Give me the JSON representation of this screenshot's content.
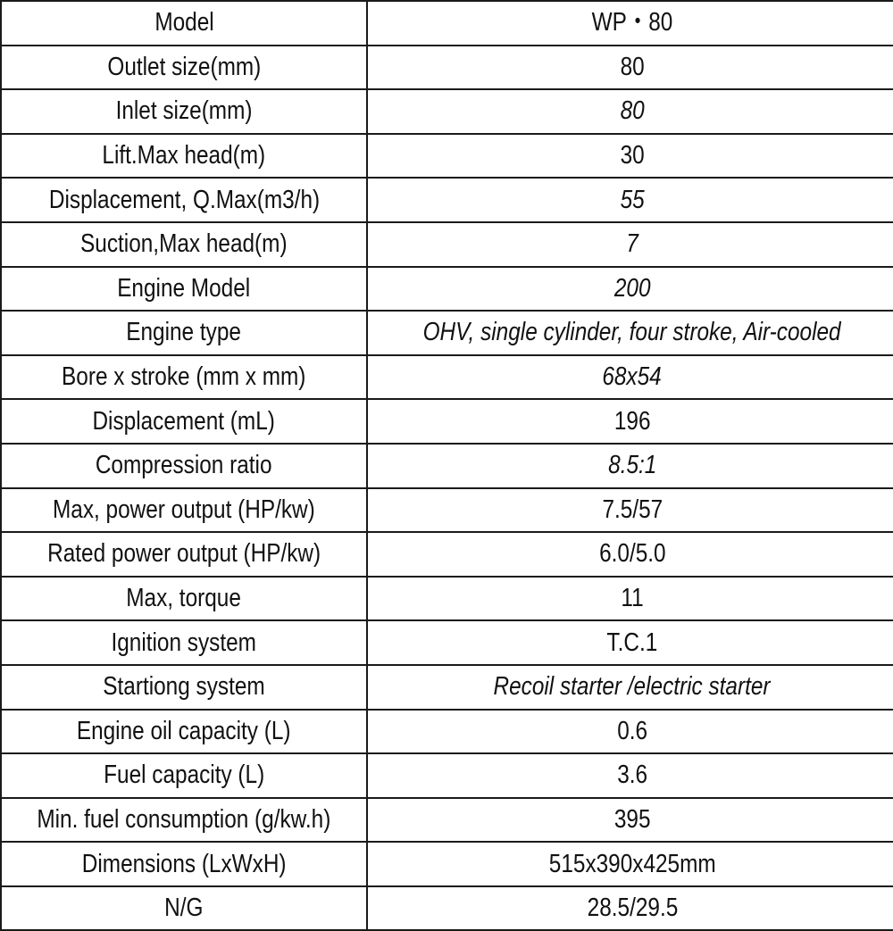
{
  "rows": [
    {
      "label": "Model",
      "value": "WP・80",
      "italic": false
    },
    {
      "label": "Outlet size(mm)",
      "value": "80",
      "italic": false
    },
    {
      "label": "Inlet size(mm)",
      "value": "80",
      "italic": true
    },
    {
      "label": "Lift.Max head(m)",
      "value": "30",
      "italic": false
    },
    {
      "label": "Displacement, Q.Max(m3/h)",
      "value": "55",
      "italic": true
    },
    {
      "label": "Suction,Max head(m)",
      "value": "7",
      "italic": true
    },
    {
      "label": "Engine Model",
      "value": "200",
      "italic": true
    },
    {
      "label": "Engine type",
      "value": "OHV, single cylinder, four stroke, Air-cooled",
      "italic": true
    },
    {
      "label": "Bore x stroke (mm x mm)",
      "value": "68x54",
      "italic": true
    },
    {
      "label": "Displacement (mL)",
      "value": "196",
      "italic": false
    },
    {
      "label": "Compression ratio",
      "value": "8.5:1",
      "italic": true
    },
    {
      "label": "Max, power output (HP/kw)",
      "value": "7.5/57",
      "italic": false
    },
    {
      "label": "Rated power output (HP/kw)",
      "value": "6.0/5.0",
      "italic": false
    },
    {
      "label": "Max, torque",
      "value": "11",
      "italic": false
    },
    {
      "label": "Ignition system",
      "value": "T.C.1",
      "italic": false
    },
    {
      "label": "Startiong system",
      "value": "Recoil starter /electric starter",
      "italic": true
    },
    {
      "label": "Engine oil capacity (L)",
      "value": "0.6",
      "italic": false
    },
    {
      "label": "Fuel capacity (L)",
      "value": "3.6",
      "italic": false
    },
    {
      "label": "Min. fuel consumption (g/kw.h)",
      "value": "395",
      "italic": false
    },
    {
      "label": "Dimensions (LxWxH)",
      "value": "515x390x425mm",
      "italic": false
    },
    {
      "label": "N/G",
      "value": "28.5/29.5",
      "italic": false
    }
  ]
}
